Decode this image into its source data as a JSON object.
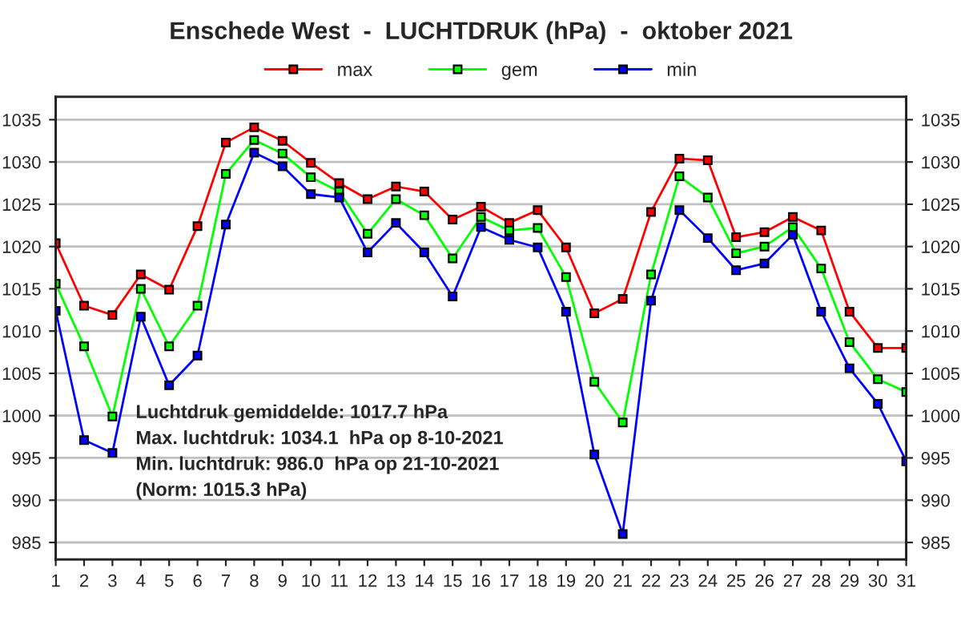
{
  "chart_data": {
    "type": "line",
    "title": "Enschede West  -  LUCHTDRUK (hPa)  -  oktober 2021",
    "x": [
      1,
      2,
      3,
      4,
      5,
      6,
      7,
      8,
      9,
      10,
      11,
      12,
      13,
      14,
      15,
      16,
      17,
      18,
      19,
      20,
      21,
      22,
      23,
      24,
      25,
      26,
      27,
      28,
      29,
      30,
      31
    ],
    "series": [
      {
        "name": "max",
        "color": "#ff0000",
        "values": [
          1020.4,
          1013.0,
          1011.9,
          1016.7,
          1014.9,
          1022.4,
          1032.3,
          1034.1,
          1032.5,
          1029.9,
          1027.5,
          1025.6,
          1027.1,
          1026.5,
          1023.2,
          1024.7,
          1022.8,
          1024.3,
          1019.9,
          1012.1,
          1013.8,
          1024.1,
          1030.4,
          1030.2,
          1021.1,
          1021.7,
          1023.5,
          1021.9,
          1012.3,
          1008.0,
          1008.0
        ]
      },
      {
        "name": "gem",
        "color": "#00ff00",
        "values": [
          1015.6,
          1008.2,
          999.9,
          1015.0,
          1008.2,
          1013.0,
          1028.6,
          1032.6,
          1031.0,
          1028.2,
          1026.5,
          1021.5,
          1025.6,
          1023.7,
          1018.6,
          1023.5,
          1021.9,
          1022.2,
          1016.4,
          1004.0,
          999.2,
          1016.7,
          1028.3,
          1025.8,
          1019.2,
          1020.0,
          1022.3,
          1017.4,
          1008.7,
          1004.3,
          1002.8
        ]
      },
      {
        "name": "min",
        "color": "#0000ff",
        "values": [
          1012.4,
          997.1,
          995.6,
          1011.7,
          1003.6,
          1007.1,
          1022.6,
          1031.1,
          1029.5,
          1026.2,
          1025.8,
          1019.3,
          1022.8,
          1019.3,
          1014.1,
          1022.3,
          1020.8,
          1019.9,
          1012.3,
          995.4,
          986.0,
          1013.6,
          1024.3,
          1021.0,
          1017.2,
          1018.0,
          1021.4,
          1012.3,
          1005.6,
          1001.4,
          994.6
        ]
      }
    ],
    "xlim": [
      1,
      31
    ],
    "xticks": [
      1,
      2,
      3,
      4,
      5,
      6,
      7,
      8,
      9,
      10,
      11,
      12,
      13,
      14,
      15,
      16,
      17,
      18,
      19,
      20,
      21,
      22,
      23,
      24,
      25,
      26,
      27,
      28,
      29,
      30,
      31
    ],
    "ylim": [
      983,
      1037.7
    ],
    "yticks": [
      985,
      990,
      995,
      1000,
      1005,
      1010,
      1015,
      1020,
      1025,
      1030,
      1035
    ],
    "y2lim": [
      983,
      1037.7
    ],
    "y2ticks": [
      985,
      990,
      995,
      1000,
      1005,
      1010,
      1015,
      1020,
      1025,
      1030,
      1035
    ],
    "grid": "y",
    "legend": "top",
    "marker": "square",
    "line_style": "solid",
    "annotations": [
      "Luchtdruk gemiddelde: 1017.7 hPa",
      "Max. luchtdruk: 1034.1  hPa op 8-10-2021",
      "Min. luchtdruk: 986.0  hPa op 21-10-2021",
      "(Norm: 1015.3 hPa)"
    ]
  }
}
